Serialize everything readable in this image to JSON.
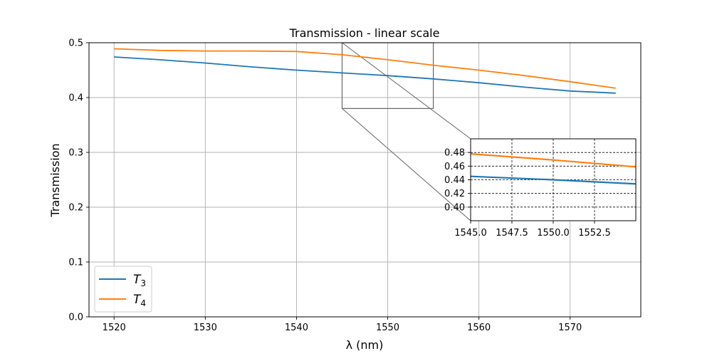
{
  "chart_data": {
    "type": "line",
    "title": "Transmission - linear scale",
    "xlabel": "λ (nm)",
    "ylabel": "Transmission",
    "xlim": [
      1517.25,
      1577.75
    ],
    "ylim": [
      0,
      0.5
    ],
    "xticks": [
      1520,
      1530,
      1540,
      1550,
      1560,
      1570
    ],
    "xtick_labels": [
      "1520",
      "1530",
      "1540",
      "1550",
      "1560",
      "1570"
    ],
    "yticks": [
      0.0,
      0.1,
      0.2,
      0.3,
      0.4,
      0.5
    ],
    "ytick_labels": [
      "0.0",
      "0.1",
      "0.2",
      "0.3",
      "0.4",
      "0.5"
    ],
    "grid": true,
    "legend_position": "lower-left",
    "series": [
      {
        "name": "T3",
        "color": "#1f77b4",
        "x": [
          1520,
          1525,
          1530,
          1535,
          1540,
          1545,
          1550,
          1555,
          1560,
          1565,
          1570,
          1575
        ],
        "y": [
          0.474,
          0.469,
          0.463,
          0.456,
          0.45,
          0.445,
          0.44,
          0.434,
          0.427,
          0.419,
          0.412,
          0.408
        ]
      },
      {
        "name": "T4",
        "color": "#ff7f0e",
        "x": [
          1520,
          1525,
          1530,
          1535,
          1540,
          1545,
          1550,
          1555,
          1560,
          1565,
          1570,
          1575
        ],
        "y": [
          0.489,
          0.486,
          0.485,
          0.485,
          0.484,
          0.478,
          0.469,
          0.459,
          0.45,
          0.44,
          0.429,
          0.417
        ]
      }
    ],
    "inset": {
      "xlim": [
        1545,
        1555
      ],
      "ylim": [
        0.38,
        0.5
      ],
      "xticks": [
        1545.0,
        1547.5,
        1550.0,
        1552.5
      ],
      "xtick_labels": [
        "1545.0",
        "1547.5",
        "1550.0",
        "1552.5"
      ],
      "yticks": [
        0.4,
        0.42,
        0.44,
        0.46,
        0.48
      ],
      "ytick_labels": [
        "0.40",
        "0.42",
        "0.44",
        "0.46",
        "0.48"
      ],
      "grid": true,
      "grid_style": "dashed"
    }
  }
}
